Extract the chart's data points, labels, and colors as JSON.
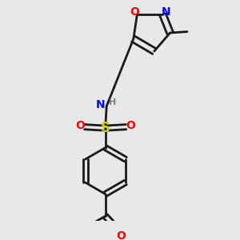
{
  "bg_color": "#e8e8e8",
  "bond_color": "#1a1a1a",
  "bond_width": 2.0,
  "atom_colors": {
    "O": "#ff0000",
    "N": "#0000ff",
    "S": "#cccc00",
    "H": "#708090",
    "C": "#1a1a1a"
  },
  "fs": 10,
  "fs_small": 8
}
